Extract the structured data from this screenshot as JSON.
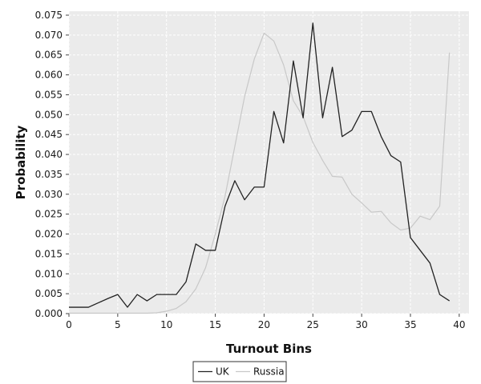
{
  "chart_data": {
    "type": "line",
    "title": "",
    "xlabel": "Turnout Bins",
    "ylabel": "Probability",
    "xlim": [
      0,
      41
    ],
    "ylim": [
      0,
      0.076
    ],
    "x_ticks": [
      0,
      5,
      10,
      15,
      20,
      25,
      30,
      35,
      40
    ],
    "y_ticks": [
      0.0,
      0.005,
      0.01,
      0.015,
      0.02,
      0.025,
      0.03,
      0.035,
      0.04,
      0.045,
      0.05,
      0.055,
      0.06,
      0.065,
      0.07,
      0.075
    ],
    "grid": true,
    "legend_position": "bottom",
    "series": [
      {
        "name": "UK",
        "color": "#222222",
        "x": [
          0,
          1,
          2,
          3,
          4,
          5,
          6,
          7,
          8,
          9,
          10,
          11,
          12,
          13,
          14,
          15,
          16,
          17,
          18,
          19,
          20,
          21,
          22,
          23,
          24,
          25,
          26,
          27,
          28,
          29,
          30,
          31,
          32,
          33,
          34,
          35,
          36,
          37,
          38,
          39
        ],
        "y": [
          0.0016,
          0.0016,
          0.0016,
          0.0027,
          0.0038,
          0.0048,
          0.0016,
          0.0048,
          0.0032,
          0.0048,
          0.0048,
          0.0048,
          0.008,
          0.0175,
          0.0159,
          0.0159,
          0.027,
          0.0334,
          0.0286,
          0.0318,
          0.0318,
          0.0508,
          0.0429,
          0.0635,
          0.0492,
          0.073,
          0.0492,
          0.0619,
          0.0445,
          0.0461,
          0.0508,
          0.0508,
          0.0445,
          0.0397,
          0.0381,
          0.0191,
          0.0159,
          0.0127,
          0.0048,
          0.0032
        ]
      },
      {
        "name": "Russia",
        "color": "#c8c8c8",
        "x": [
          0,
          1,
          2,
          3,
          4,
          5,
          6,
          7,
          8,
          9,
          10,
          11,
          12,
          13,
          14,
          15,
          16,
          17,
          18,
          19,
          20,
          21,
          22,
          23,
          24,
          25,
          26,
          27,
          28,
          29,
          30,
          31,
          32,
          33,
          34,
          35,
          36,
          37,
          38,
          39
        ],
        "y": [
          0.0001,
          0.0001,
          0.0001,
          0.0001,
          0.0001,
          0.0001,
          0.0001,
          0.0001,
          0.0001,
          0.0002,
          0.0006,
          0.0013,
          0.003,
          0.0062,
          0.0115,
          0.02,
          0.0295,
          0.042,
          0.0545,
          0.064,
          0.0705,
          0.0685,
          0.0625,
          0.0535,
          0.0495,
          0.043,
          0.0385,
          0.0345,
          0.0343,
          0.03,
          0.0278,
          0.0255,
          0.0257,
          0.0228,
          0.021,
          0.0215,
          0.0245,
          0.0236,
          0.027,
          0.0656
        ]
      }
    ]
  }
}
